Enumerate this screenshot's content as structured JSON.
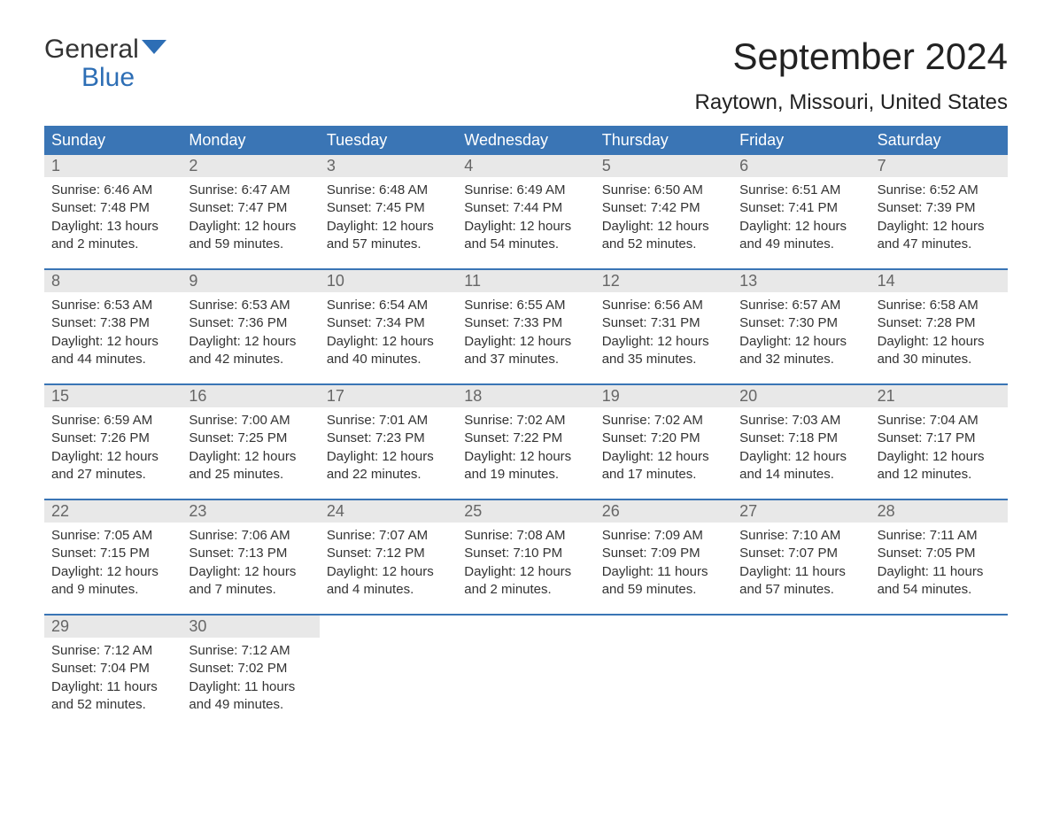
{
  "logo": {
    "word1": "General",
    "word2": "Blue",
    "accent_color": "#2d6eb5"
  },
  "title": "September 2024",
  "location": "Raytown, Missouri, United States",
  "colors": {
    "header_bg": "#3a75b5",
    "header_text": "#ffffff",
    "daynum_bg": "#e8e8e8",
    "daynum_text": "#666666",
    "rule": "#3a75b5",
    "body_text": "#333333"
  },
  "day_names": [
    "Sunday",
    "Monday",
    "Tuesday",
    "Wednesday",
    "Thursday",
    "Friday",
    "Saturday"
  ],
  "days": [
    {
      "n": "1",
      "sunrise": "6:46 AM",
      "sunset": "7:48 PM",
      "daylight": "13 hours and 2 minutes."
    },
    {
      "n": "2",
      "sunrise": "6:47 AM",
      "sunset": "7:47 PM",
      "daylight": "12 hours and 59 minutes."
    },
    {
      "n": "3",
      "sunrise": "6:48 AM",
      "sunset": "7:45 PM",
      "daylight": "12 hours and 57 minutes."
    },
    {
      "n": "4",
      "sunrise": "6:49 AM",
      "sunset": "7:44 PM",
      "daylight": "12 hours and 54 minutes."
    },
    {
      "n": "5",
      "sunrise": "6:50 AM",
      "sunset": "7:42 PM",
      "daylight": "12 hours and 52 minutes."
    },
    {
      "n": "6",
      "sunrise": "6:51 AM",
      "sunset": "7:41 PM",
      "daylight": "12 hours and 49 minutes."
    },
    {
      "n": "7",
      "sunrise": "6:52 AM",
      "sunset": "7:39 PM",
      "daylight": "12 hours and 47 minutes."
    },
    {
      "n": "8",
      "sunrise": "6:53 AM",
      "sunset": "7:38 PM",
      "daylight": "12 hours and 44 minutes."
    },
    {
      "n": "9",
      "sunrise": "6:53 AM",
      "sunset": "7:36 PM",
      "daylight": "12 hours and 42 minutes."
    },
    {
      "n": "10",
      "sunrise": "6:54 AM",
      "sunset": "7:34 PM",
      "daylight": "12 hours and 40 minutes."
    },
    {
      "n": "11",
      "sunrise": "6:55 AM",
      "sunset": "7:33 PM",
      "daylight": "12 hours and 37 minutes."
    },
    {
      "n": "12",
      "sunrise": "6:56 AM",
      "sunset": "7:31 PM",
      "daylight": "12 hours and 35 minutes."
    },
    {
      "n": "13",
      "sunrise": "6:57 AM",
      "sunset": "7:30 PM",
      "daylight": "12 hours and 32 minutes."
    },
    {
      "n": "14",
      "sunrise": "6:58 AM",
      "sunset": "7:28 PM",
      "daylight": "12 hours and 30 minutes."
    },
    {
      "n": "15",
      "sunrise": "6:59 AM",
      "sunset": "7:26 PM",
      "daylight": "12 hours and 27 minutes."
    },
    {
      "n": "16",
      "sunrise": "7:00 AM",
      "sunset": "7:25 PM",
      "daylight": "12 hours and 25 minutes."
    },
    {
      "n": "17",
      "sunrise": "7:01 AM",
      "sunset": "7:23 PM",
      "daylight": "12 hours and 22 minutes."
    },
    {
      "n": "18",
      "sunrise": "7:02 AM",
      "sunset": "7:22 PM",
      "daylight": "12 hours and 19 minutes."
    },
    {
      "n": "19",
      "sunrise": "7:02 AM",
      "sunset": "7:20 PM",
      "daylight": "12 hours and 17 minutes."
    },
    {
      "n": "20",
      "sunrise": "7:03 AM",
      "sunset": "7:18 PM",
      "daylight": "12 hours and 14 minutes."
    },
    {
      "n": "21",
      "sunrise": "7:04 AM",
      "sunset": "7:17 PM",
      "daylight": "12 hours and 12 minutes."
    },
    {
      "n": "22",
      "sunrise": "7:05 AM",
      "sunset": "7:15 PM",
      "daylight": "12 hours and 9 minutes."
    },
    {
      "n": "23",
      "sunrise": "7:06 AM",
      "sunset": "7:13 PM",
      "daylight": "12 hours and 7 minutes."
    },
    {
      "n": "24",
      "sunrise": "7:07 AM",
      "sunset": "7:12 PM",
      "daylight": "12 hours and 4 minutes."
    },
    {
      "n": "25",
      "sunrise": "7:08 AM",
      "sunset": "7:10 PM",
      "daylight": "12 hours and 2 minutes."
    },
    {
      "n": "26",
      "sunrise": "7:09 AM",
      "sunset": "7:09 PM",
      "daylight": "11 hours and 59 minutes."
    },
    {
      "n": "27",
      "sunrise": "7:10 AM",
      "sunset": "7:07 PM",
      "daylight": "11 hours and 57 minutes."
    },
    {
      "n": "28",
      "sunrise": "7:11 AM",
      "sunset": "7:05 PM",
      "daylight": "11 hours and 54 minutes."
    },
    {
      "n": "29",
      "sunrise": "7:12 AM",
      "sunset": "7:04 PM",
      "daylight": "11 hours and 52 minutes."
    },
    {
      "n": "30",
      "sunrise": "7:12 AM",
      "sunset": "7:02 PM",
      "daylight": "11 hours and 49 minutes."
    }
  ],
  "labels": {
    "sunrise_prefix": "Sunrise: ",
    "sunset_prefix": "Sunset: ",
    "daylight_prefix": "Daylight: "
  },
  "layout": {
    "first_day_offset": 0,
    "total_cells": 35
  }
}
